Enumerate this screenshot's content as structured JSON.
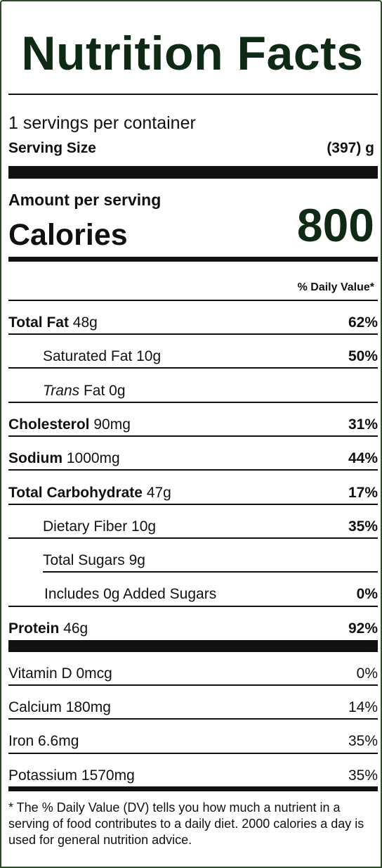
{
  "label": {
    "title": "Nutrition Facts",
    "servings_per_container": "1 servings per container",
    "serving_size_label": "Serving Size",
    "serving_size_value": "(397) g",
    "amount_per_serving": "Amount per serving",
    "calories_label": "Calories",
    "calories_value": "800",
    "dv_header": "% Daily Value*"
  },
  "nutrients": {
    "total_fat": {
      "label": "Total Fat",
      "amount": "48g",
      "dv": "62%"
    },
    "saturated_fat": {
      "label": "Saturated Fat",
      "amount": "10g",
      "dv": "50%"
    },
    "trans_fat": {
      "label_italic": "Trans",
      "label_rest": "Fat",
      "amount": "0g"
    },
    "cholesterol": {
      "label": "Cholesterol",
      "amount": "90mg",
      "dv": "31%"
    },
    "sodium": {
      "label": "Sodium",
      "amount": "1000mg",
      "dv": "44%"
    },
    "total_carbohydrate": {
      "label": "Total Carbohydrate",
      "amount": "47g",
      "dv": "17%"
    },
    "dietary_fiber": {
      "label": "Dietary Fiber",
      "amount": "10g",
      "dv": "35%"
    },
    "total_sugars": {
      "label": "Total Sugars",
      "amount": "9g"
    },
    "added_sugars": {
      "label_pre": "Includes",
      "amount": "0g",
      "label_post": "Added Sugars",
      "dv": "0%"
    },
    "protein": {
      "label": "Protein",
      "amount": "46g",
      "dv": "92%"
    }
  },
  "micronutrients": {
    "vitamin_d": {
      "label": "Vitamin D",
      "amount": "0mcg",
      "dv": "0%"
    },
    "calcium": {
      "label": "Calcium",
      "amount": "180mg",
      "dv": "14%"
    },
    "iron": {
      "label": "Iron",
      "amount": "6.6mg",
      "dv": "35%"
    },
    "potassium": {
      "label": "Potassium",
      "amount": "1570mg",
      "dv": "35%"
    }
  },
  "footnote": "* The % Daily Value (DV) tells you how much a nutrient in a serving of food contributes to a daily diet. 2000 calories a day is used for general nutrition advice.",
  "colors": {
    "border": "#2f4a2f",
    "title_text": "#0f2a14",
    "rules": "#111111"
  }
}
